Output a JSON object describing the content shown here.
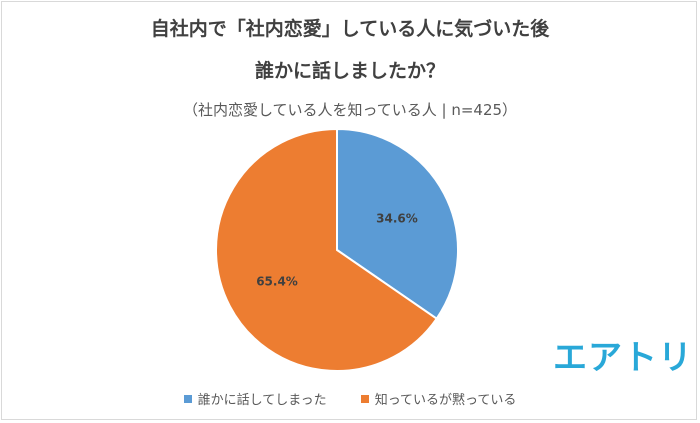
{
  "title_line1": "自社内で「社内恋愛」している人に気づいた後",
  "title_line2": "誰かに話しましたか？",
  "subtitle": "（社内恋愛している人を知っている人 | n=425）",
  "logo_text": "エアトリ",
  "colors": {
    "blue": "#5b9bd5",
    "orange": "#ed7d31",
    "logo": "#29a8d8"
  },
  "chart_data": {
    "type": "pie",
    "title": "自社内で「社内恋愛」している人に気づいた後 誰かに話しましたか？",
    "subtitle": "（社内恋愛している人を知っている人 | n=425）",
    "legend_position": "bottom",
    "slices": [
      {
        "name": "誰かに話してしまった",
        "value": 34.6,
        "label": "34.6%",
        "color": "#5b9bd5"
      },
      {
        "name": "知っているが黙っている",
        "value": 65.4,
        "label": "65.4%",
        "color": "#ed7d31"
      }
    ]
  }
}
